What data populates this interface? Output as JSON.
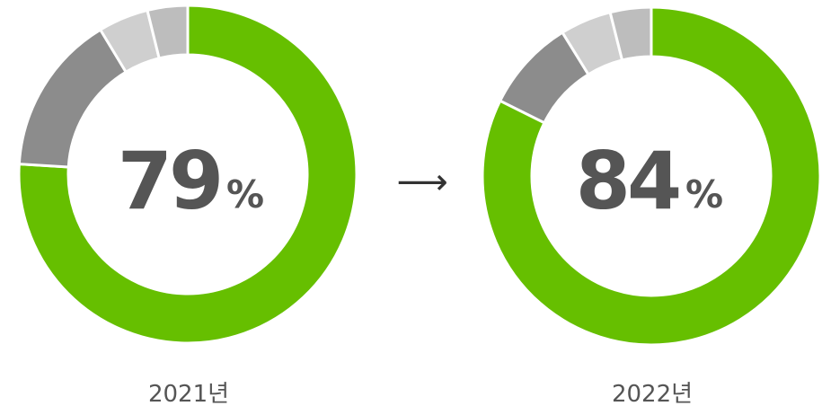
{
  "chart_data": [
    {
      "type": "pie",
      "center_label": "79",
      "unit": "%",
      "year_label": "2021년",
      "values": [
        79,
        16,
        5,
        4
      ],
      "colors": [
        "#66bf00",
        "#8c8c8c",
        "#cfcfcf",
        "#bdbdbd"
      ]
    },
    {
      "type": "pie",
      "center_label": "84",
      "unit": "%",
      "year_label": "2022년",
      "values": [
        84,
        9,
        5,
        4
      ],
      "colors": [
        "#66bf00",
        "#8c8c8c",
        "#cfcfcf",
        "#bdbdbd"
      ]
    }
  ],
  "arrow_glyph": "⟶"
}
